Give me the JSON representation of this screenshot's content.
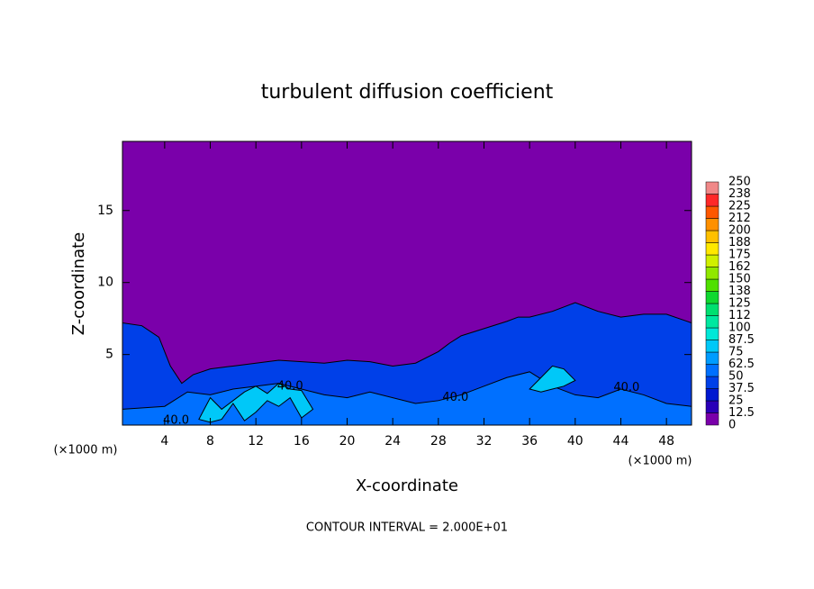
{
  "chart_data": {
    "type": "contour",
    "title": "turbulent diffusion coefficient",
    "x_label": "X-coordinate",
    "y_label": "Z-coordinate",
    "unit_label": "(×1000 m)",
    "footer": "CONTOUR INTERVAL = 2.000E+01",
    "xlim": [
      0.3,
      50.2
    ],
    "ylim": [
      0.1,
      19.8
    ],
    "xticks": [
      4,
      8,
      12,
      16,
      20,
      24,
      28,
      32,
      36,
      40,
      44,
      48
    ],
    "yticks": [
      5,
      10,
      15
    ],
    "background_color": "#7a00aa",
    "colorbar": {
      "ticks": [
        0,
        12.5,
        25,
        37.5,
        50,
        62.5,
        75,
        87.5,
        100,
        {
          "value": 112.5,
          "label": "112"
        },
        125,
        {
          "value": 137.5,
          "label": "138"
        },
        150,
        {
          "value": 162.5,
          "label": "162"
        },
        175,
        {
          "value": 187.5,
          "label": "188"
        },
        200,
        {
          "value": 212.5,
          "label": "212"
        },
        225,
        {
          "value": 237.5,
          "label": "238"
        },
        250
      ],
      "colors": [
        "#7a00aa",
        "#2a00b8",
        "#0018d0",
        "#0040e8",
        "#0070ff",
        "#009cff",
        "#00c8f8",
        "#00e8d8",
        "#00e8a0",
        "#00e070",
        "#10d830",
        "#50e000",
        "#90e800",
        "#d0f000",
        "#ffe800",
        "#ffc000",
        "#ff9000",
        "#ff5800",
        "#ff2828",
        "#f08888"
      ]
    },
    "layers": [
      {
        "value": 40,
        "x": [
          0.3,
          2,
          3.5,
          4.5,
          5.5,
          6.5,
          8,
          10,
          12,
          14,
          16,
          18,
          20,
          22,
          24,
          26,
          28,
          29,
          30,
          32,
          34,
          35,
          36,
          38,
          40,
          42,
          44,
          46,
          48,
          50.2
        ],
        "z": [
          7.2,
          7,
          6.2,
          4.2,
          3,
          3.6,
          4,
          4.2,
          4.4,
          4.6,
          4.5,
          4.4,
          4.6,
          4.5,
          4.2,
          4.4,
          5.2,
          5.8,
          6.3,
          6.8,
          7.3,
          7.6,
          7.6,
          8,
          8.6,
          8,
          7.6,
          7.8,
          7.8,
          7.2
        ]
      },
      {
        "value": 55,
        "x": [
          0.3,
          4,
          6,
          8,
          10,
          12,
          14,
          16,
          18,
          20,
          22,
          24,
          26,
          28,
          30,
          32,
          34,
          36,
          38,
          40,
          42,
          44,
          46,
          48,
          50.2
        ],
        "z": [
          1.2,
          1.4,
          2.4,
          2.2,
          2.6,
          2.8,
          3,
          2.6,
          2.2,
          2,
          2.4,
          2,
          1.6,
          1.8,
          2.2,
          2.8,
          3.4,
          3.8,
          2.8,
          2.2,
          2,
          2.6,
          2.2,
          1.6,
          1.4
        ]
      },
      {
        "value": 80,
        "x": [
          7,
          8,
          9,
          10,
          11,
          12,
          13,
          14,
          15,
          16,
          17,
          16,
          15,
          14,
          13,
          12,
          11,
          10,
          9,
          8
        ],
        "z": [
          0.5,
          2,
          1.2,
          1.8,
          2.4,
          2.8,
          2.3,
          3,
          2.6,
          2.5,
          1.2,
          0.6,
          2,
          1.4,
          1.8,
          1,
          0.4,
          1.6,
          0.5,
          0.3
        ]
      },
      {
        "value": 80,
        "x": [
          36,
          37,
          38,
          39,
          40,
          39,
          38,
          37
        ],
        "z": [
          2.6,
          3.4,
          4.2,
          4,
          3.2,
          2.8,
          2.6,
          2.4
        ]
      }
    ],
    "contour_labels": [
      {
        "value": 40,
        "label": "40.0",
        "x": 5,
        "z": 0.4
      },
      {
        "value": 40,
        "label": "40.0",
        "x": 15,
        "z": 2.8
      },
      {
        "value": 40,
        "label": "40.0",
        "x": 29.5,
        "z": 2
      },
      {
        "value": 40,
        "label": "40.0",
        "x": 44.5,
        "z": 2.7
      }
    ]
  }
}
